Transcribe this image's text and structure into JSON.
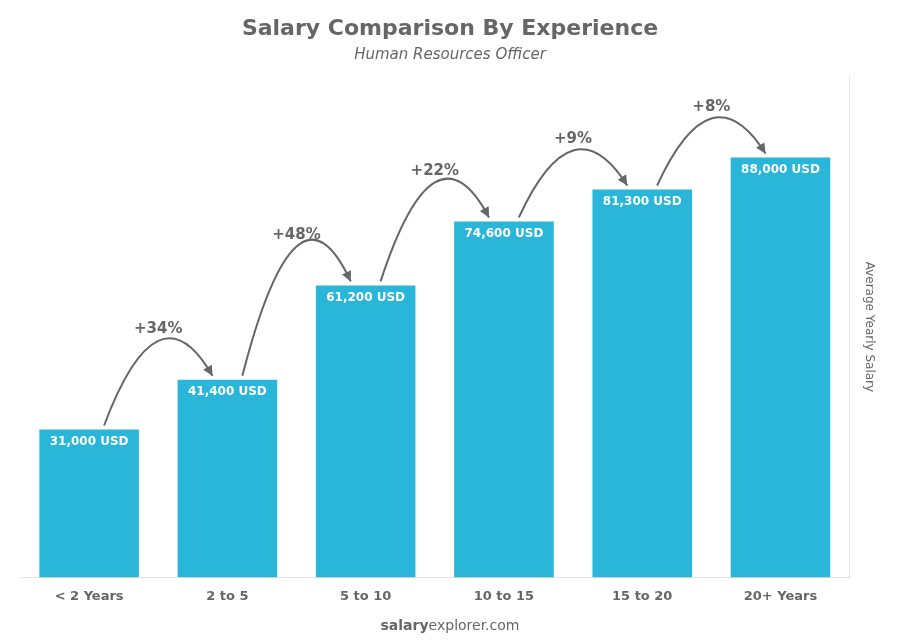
{
  "chart_data": {
    "type": "bar",
    "title": "Salary Comparison By Experience",
    "subtitle": "Human Resources Officer",
    "ylabel": "Average Yearly Salary",
    "footer": [
      "salary",
      "explorer.com"
    ],
    "categories": [
      "< 2 Years",
      "2 to 5",
      "5 to 10",
      "10 to 15",
      "15 to 20",
      "20+ Years"
    ],
    "values": [
      31000,
      41400,
      61200,
      74600,
      81300,
      88000
    ],
    "value_labels": [
      "31,000 USD",
      "41,400 USD",
      "61,200 USD",
      "74,600 USD",
      "81,300 USD",
      "88,000 USD"
    ],
    "data_labels": true,
    "color": "#29b6d8",
    "ylim": [
      0,
      105000
    ],
    "grid": false,
    "tick_labels": "x",
    "annotations": [
      {
        "text": "+34%",
        "from": "< 2 Years",
        "to": "2 to 5"
      },
      {
        "text": "+48%",
        "from": "2 to 5",
        "to": "5 to 10"
      },
      {
        "text": "+22%",
        "from": "5 to 10",
        "to": "10 to 15"
      },
      {
        "text": "+9%",
        "from": "10 to 15",
        "to": "15 to 20"
      },
      {
        "text": "+8%",
        "from": "15 to 20",
        "to": "20+ Years"
      }
    ]
  }
}
